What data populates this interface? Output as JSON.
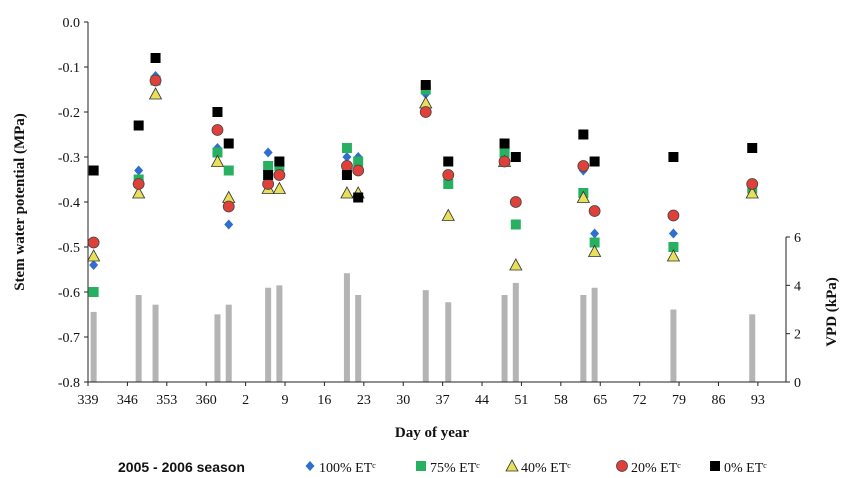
{
  "chart_data": {
    "type": "scatter",
    "xlabel": "Day of year",
    "ylabel": "Stem water potential (MPa)",
    "y2label": "VPD (kPa)",
    "xlim": [
      339,
      463
    ],
    "ylim": [
      -0.8,
      0.0
    ],
    "y2lim": [
      0,
      6
    ],
    "x_tick_values": [
      339,
      346,
      353,
      360,
      367,
      374,
      381,
      388,
      395,
      402,
      409,
      416,
      423,
      430,
      437,
      444,
      451,
      458
    ],
    "x_tick_labels": [
      "339",
      "346",
      "353",
      "360",
      "2",
      "9",
      "16",
      "23",
      "30",
      "37",
      "44",
      "51",
      "58",
      "65",
      "72",
      "79",
      "86",
      "93"
    ],
    "y_ticks": [
      "0.0",
      "-0.1",
      "-0.2",
      "-0.3",
      "-0.4",
      "-0.5",
      "-0.6",
      "-0.7",
      "-0.8"
    ],
    "y2_ticks": [
      "0",
      "2",
      "4",
      "6"
    ],
    "legend_title": "2005 - 2006 season",
    "legend_position": "bottom",
    "series": [
      {
        "name": "100% ETᶜ",
        "marker": "diamond",
        "color": "#2f6ecf",
        "points": [
          [
            340,
            -0.54
          ],
          [
            348,
            -0.33
          ],
          [
            351,
            -0.12
          ],
          [
            362,
            -0.28
          ],
          [
            364,
            -0.45
          ],
          [
            371,
            -0.29
          ],
          [
            373,
            -0.33
          ],
          [
            385,
            -0.3
          ],
          [
            387,
            -0.3
          ],
          [
            399,
            -0.16
          ],
          [
            403,
            -0.34
          ],
          [
            413,
            -0.3
          ],
          [
            415,
            -0.4
          ],
          [
            427,
            -0.33
          ],
          [
            429,
            -0.47
          ],
          [
            443,
            -0.47
          ],
          [
            457,
            -0.36
          ]
        ]
      },
      {
        "name": "75% ETᶜ",
        "marker": "square",
        "color": "#27b062",
        "points": [
          [
            340,
            -0.6
          ],
          [
            348,
            -0.35
          ],
          [
            351,
            -0.13
          ],
          [
            362,
            -0.29
          ],
          [
            364,
            -0.33
          ],
          [
            371,
            -0.32
          ],
          [
            373,
            -0.32
          ],
          [
            385,
            -0.28
          ],
          [
            387,
            -0.31
          ],
          [
            399,
            -0.15
          ],
          [
            403,
            -0.36
          ],
          [
            413,
            -0.29
          ],
          [
            415,
            -0.45
          ],
          [
            427,
            -0.38
          ],
          [
            429,
            -0.49
          ],
          [
            443,
            -0.5
          ],
          [
            457,
            -0.37
          ]
        ]
      },
      {
        "name": "40% ETᶜ",
        "marker": "triangle",
        "color": "#e8e05a",
        "points": [
          [
            340,
            -0.52
          ],
          [
            348,
            -0.38
          ],
          [
            351,
            -0.16
          ],
          [
            362,
            -0.31
          ],
          [
            364,
            -0.39
          ],
          [
            371,
            -0.37
          ],
          [
            373,
            -0.37
          ],
          [
            385,
            -0.38
          ],
          [
            387,
            -0.38
          ],
          [
            399,
            -0.18
          ],
          [
            403,
            -0.43
          ],
          [
            413,
            -0.31
          ],
          [
            415,
            -0.54
          ],
          [
            427,
            -0.39
          ],
          [
            429,
            -0.51
          ],
          [
            443,
            -0.52
          ],
          [
            457,
            -0.38
          ]
        ]
      },
      {
        "name": "20% ETᶜ",
        "marker": "circle",
        "color": "#e0403a",
        "points": [
          [
            340,
            -0.49
          ],
          [
            348,
            -0.36
          ],
          [
            351,
            -0.13
          ],
          [
            362,
            -0.24
          ],
          [
            364,
            -0.41
          ],
          [
            371,
            -0.36
          ],
          [
            373,
            -0.34
          ],
          [
            385,
            -0.32
          ],
          [
            387,
            -0.33
          ],
          [
            399,
            -0.2
          ],
          [
            403,
            -0.34
          ],
          [
            413,
            -0.31
          ],
          [
            415,
            -0.4
          ],
          [
            427,
            -0.32
          ],
          [
            429,
            -0.42
          ],
          [
            443,
            -0.43
          ],
          [
            457,
            -0.36
          ]
        ]
      },
      {
        "name": "0% ETᶜ",
        "marker": "square",
        "color": "#000000",
        "points": [
          [
            340,
            -0.33
          ],
          [
            348,
            -0.23
          ],
          [
            351,
            -0.08
          ],
          [
            362,
            -0.2
          ],
          [
            364,
            -0.27
          ],
          [
            371,
            -0.34
          ],
          [
            373,
            -0.31
          ],
          [
            385,
            -0.34
          ],
          [
            387,
            -0.39
          ],
          [
            399,
            -0.14
          ],
          [
            403,
            -0.31
          ],
          [
            413,
            -0.27
          ],
          [
            415,
            -0.3
          ],
          [
            427,
            -0.25
          ],
          [
            429,
            -0.31
          ],
          [
            443,
            -0.3
          ],
          [
            457,
            -0.28
          ]
        ]
      }
    ],
    "vpd_bars": {
      "name": "VPD",
      "color": "#b4b4b4",
      "x": [
        340,
        348,
        351,
        362,
        364,
        371,
        373,
        385,
        387,
        399,
        403,
        413,
        415,
        427,
        429,
        443,
        457
      ],
      "values": [
        2.9,
        3.6,
        3.2,
        2.8,
        3.2,
        3.9,
        4.0,
        4.5,
        3.6,
        3.8,
        3.3,
        3.6,
        4.1,
        3.6,
        3.9,
        3.0,
        2.8
      ]
    }
  }
}
